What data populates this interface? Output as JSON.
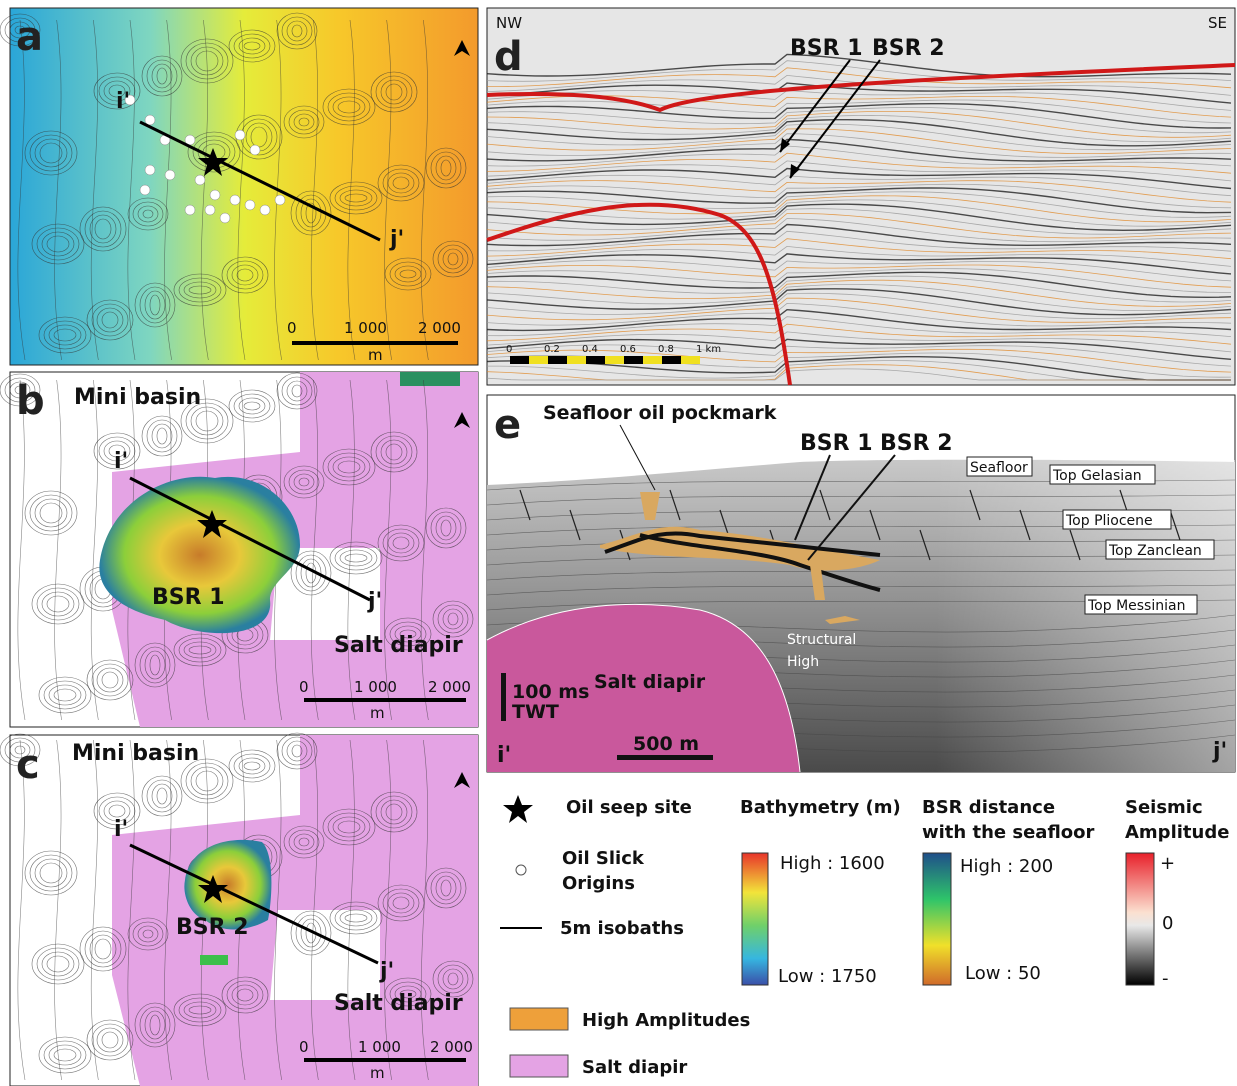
{
  "panel_a": {
    "letter": "a",
    "i_label": "i'",
    "j_label": "j'",
    "scale": {
      "zero": "0",
      "mid": "1 000",
      "end": "2 000",
      "unit": "m"
    }
  },
  "panel_b": {
    "letter": "b",
    "region": "Mini basin",
    "i_label": "i'",
    "j_label": "j'",
    "bsr": "BSR 1",
    "salt": "Salt diapir",
    "scale": {
      "zero": "0",
      "mid": "1 000",
      "end": "2 000",
      "unit": "m"
    }
  },
  "panel_c": {
    "letter": "c",
    "region": "Mini basin",
    "i_label": "i'",
    "j_label": "j'",
    "bsr": "BSR 2",
    "salt": "Salt diapir",
    "scale": {
      "zero": "0",
      "mid": "1 000",
      "end": "2 000",
      "unit": "m"
    }
  },
  "panel_d": {
    "letter": "d",
    "left": "NW",
    "right": "SE",
    "bsr1": "BSR 1",
    "bsr2": "BSR 2",
    "scale": [
      "0",
      "0.2",
      "0.4",
      "0.6",
      "0.8",
      "1 km"
    ]
  },
  "panel_e": {
    "letter": "e",
    "pockmark": "Seafloor oil pockmark",
    "bsr1": "BSR 1",
    "bsr2": "BSR 2",
    "horizons": [
      "Seafloor",
      "Top Gelasian",
      "Top Pliocene",
      "Top Zanclean",
      "Top Messinian"
    ],
    "structural_high": [
      "Structural",
      "High"
    ],
    "salt": "Salt diapir",
    "vscale": [
      "100 ms",
      "TWT"
    ],
    "hscale": "500 m",
    "i_label": "i'",
    "j_label": "j'"
  },
  "legend": {
    "seep": "Oil seep site",
    "slick": [
      "Oil Slick",
      "Origins"
    ],
    "isobaths": "5m isobaths",
    "high_amp": "High Amplitudes",
    "salt": "Salt diapir",
    "bathymetry": {
      "title": "Bathymetry (m)",
      "high": "High : 1600",
      "low": "Low : 1750"
    },
    "bsr_distance": {
      "title": [
        "BSR distance",
        "with the seafloor"
      ],
      "high": "High : 200",
      "low": "Low : 50"
    },
    "amplitude": {
      "title": [
        "Seismic",
        "Amplitude"
      ],
      "plus": "+",
      "zero": "0",
      "minus": "-"
    }
  }
}
